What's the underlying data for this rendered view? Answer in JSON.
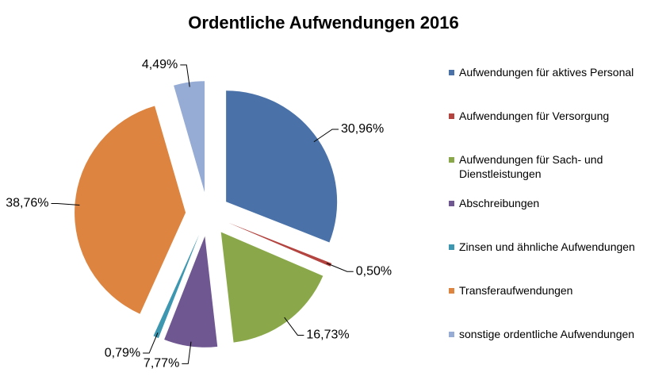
{
  "chart_data": {
    "type": "pie",
    "title": "Ordentliche Aufwendungen 2016",
    "categories": [
      "Aufwendungen für aktives Personal",
      "Aufwendungen für Versorgung",
      "Aufwendungen für Sach- und Dienstleistungen",
      "Abschreibungen",
      "Zinsen und ähnliche Aufwendungen",
      "Transferaufwendungen",
      "sonstige ordentliche Aufwendungen"
    ],
    "values": [
      30.96,
      0.5,
      16.73,
      7.77,
      0.79,
      38.76,
      4.49
    ],
    "value_labels": [
      "30,96%",
      "0,50%",
      "16,73%",
      "7,77%",
      "0,79%",
      "38,76%",
      "4,49%"
    ],
    "colors": [
      "#4a72a8",
      "#b3443f",
      "#8aa84a",
      "#6f5792",
      "#3d97b0",
      "#dc8440",
      "#97acd4"
    ],
    "legend": "right"
  }
}
